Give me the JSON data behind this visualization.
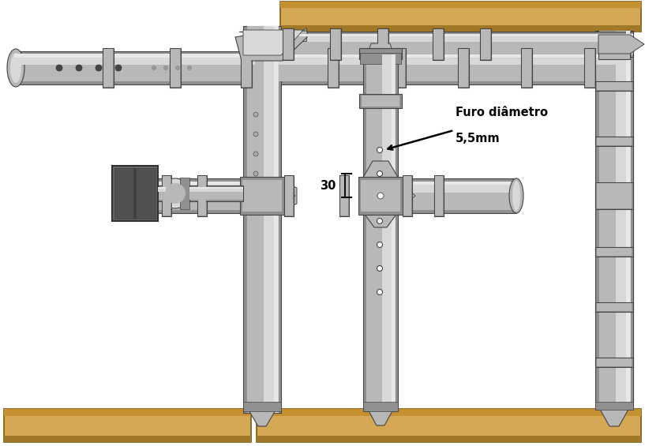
{
  "bg_color": "#ffffff",
  "pc_light": "#d8d8d8",
  "pc_mid": "#b8b8b8",
  "pc_dark": "#909090",
  "pc_edge": "#444444",
  "pc_highlight": "#e8e8e8",
  "wood_face": "#d4a855",
  "wood_dark": "#a07828",
  "wood_edge": "#7a5a10",
  "gray_box": "#686868",
  "gray_box_dark": "#505050",
  "annotation_text1": "Furo diâmetro",
  "annotation_text2": "5,5mm",
  "dim_text": "30",
  "fig_width": 8.17,
  "fig_height": 5.65,
  "dpi": 100
}
